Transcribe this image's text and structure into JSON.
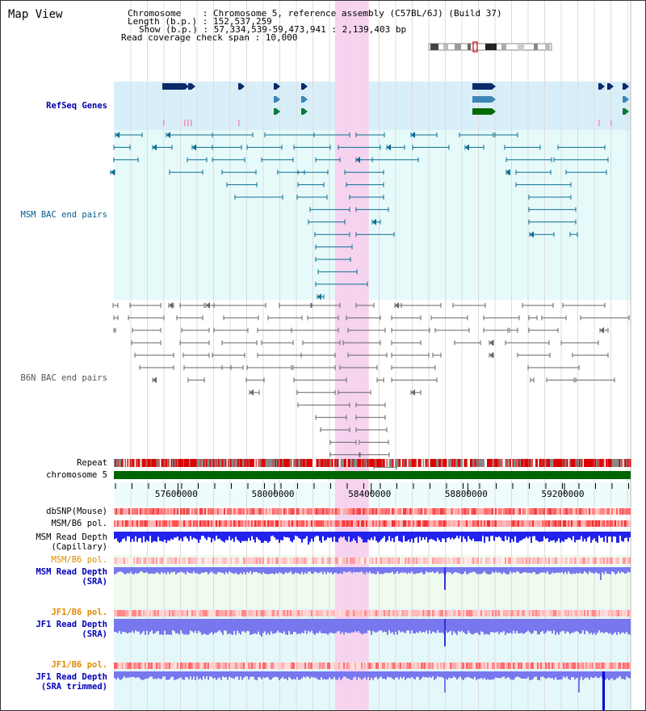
{
  "window": {
    "title": "Map View"
  },
  "info": {
    "chromosome": "Chromosome    : Chromosome 5, reference assembly (C57BL/6J) (Build 37)",
    "length": "Length (b.p.) : 152,537,259",
    "show": "Show (b.p.) : 57,334,539-59,473,941 : 2,139,403 bp",
    "span": "Read coverage check span : 10,000"
  },
  "tracks": {
    "refseq": "RefSeq Genes",
    "msm_bac": "MSM BAC end pairs",
    "b6n_bac": "B6N BAC end pairs",
    "repeat": "Repeat",
    "chromosome": "chromosome 5",
    "dbsnp": "dbSNP(Mouse)",
    "msm_b6_pol_1": "MSM/B6 pol.",
    "msm_read_depth_cap_1": "MSM Read Depth",
    "msm_read_depth_cap_2": "(Capillary)",
    "msm_b6_pol_2": "MSM/B6 pol.",
    "msm_read_depth_sra_1": "MSM Read Depth",
    "msm_read_depth_sra_2": "(SRA)",
    "jf1_b6_pol_1": "JF1/B6 pol.",
    "jf1_read_depth_1": "JF1 Read Depth",
    "jf1_read_depth_2": "(SRA)",
    "jf1_b6_pol_2": "JF1/B6 pol.",
    "jf1_read_depth_trim_1": "JF1 Read Depth",
    "jf1_read_depth_trim_2": "(SRA trimmed)"
  },
  "axis": {
    "ticks": [
      "57600000",
      "58000000",
      "58400000",
      "58800000",
      "59200000"
    ],
    "tick_values": [
      57600000,
      58000000,
      58400000,
      58800000,
      59200000
    ],
    "range": [
      57334539,
      59473941
    ]
  },
  "highlight": {
    "start": 58250000,
    "end": 58390000,
    "color": "#f7d3f0"
  },
  "colors": {
    "refseq_bg": "#d8eef8",
    "bac_bg": "#e6fafa",
    "chrom_bar": "#006400",
    "repeat_red": "#dd0000",
    "depth_blue": "#2222ee",
    "depth_light": "#7777ee"
  }
}
